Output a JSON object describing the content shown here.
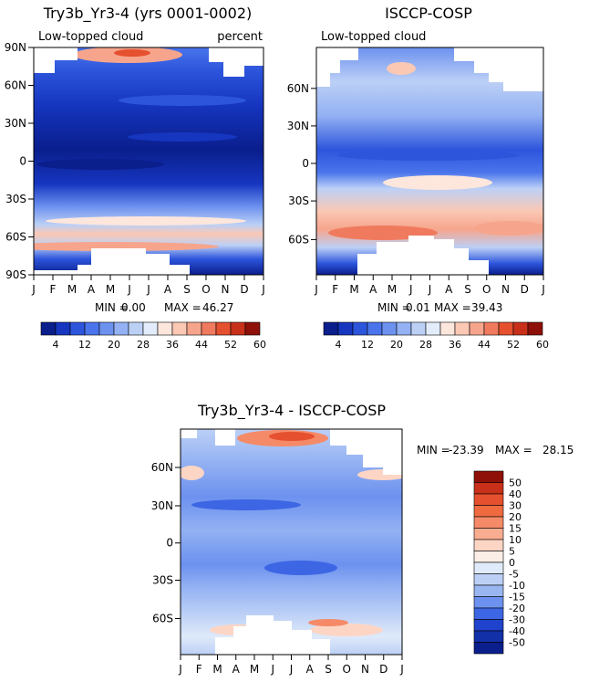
{
  "chart_data": [
    {
      "type": "heatmap",
      "title": "Try3b_Yr3-4 (yrs 0001-0002)",
      "subtitle_left": "Low-topped cloud",
      "subtitle_right": "percent",
      "stats": {
        "min_label": "MIN =",
        "min": "0.00",
        "max_label": "MAX =",
        "max": "46.27"
      },
      "x_ticks": [
        "J",
        "F",
        "M",
        "A",
        "M",
        "J",
        "J",
        "A",
        "S",
        "O",
        "N",
        "D",
        "J"
      ],
      "y_ticks": [
        "90N",
        "60N",
        "30N",
        "0",
        "30S",
        "60S",
        "90S"
      ],
      "colorbar_labels": [
        "4",
        "12",
        "20",
        "28",
        "36",
        "44",
        "52",
        "60"
      ]
    },
    {
      "type": "heatmap",
      "title": "ISCCP-COSP",
      "subtitle_left": "Low-topped cloud",
      "stats": {
        "min_label": "MIN =",
        "min": "0.01",
        "max_label": "MAX =",
        "max": "39.43"
      },
      "x_ticks": [
        "J",
        "F",
        "M",
        "A",
        "M",
        "J",
        "J",
        "A",
        "S",
        "O",
        "N",
        "D",
        "J"
      ],
      "y_ticks": [
        "60N",
        "30N",
        "0",
        "30S",
        "60S"
      ],
      "colorbar_labels": [
        "4",
        "12",
        "20",
        "28",
        "36",
        "44",
        "52",
        "60"
      ]
    },
    {
      "type": "heatmap",
      "title": "Try3b_Yr3-4 - ISCCP-COSP",
      "stats": {
        "min_label": "MIN =",
        "min": "-23.39",
        "max_label": "MAX =",
        "max": "28.15"
      },
      "x_ticks": [
        "J",
        "F",
        "M",
        "A",
        "M",
        "J",
        "J",
        "A",
        "S",
        "O",
        "N",
        "D",
        "J"
      ],
      "y_ticks": [
        "60N",
        "30N",
        "0",
        "30S",
        "60S"
      ],
      "colorbar_labels": [
        "50",
        "40",
        "30",
        "20",
        "15",
        "10",
        "5",
        "0",
        "-5",
        "-10",
        "-15",
        "-20",
        "-30",
        "-40",
        "-50"
      ]
    }
  ],
  "colors": {
    "abs_scale": [
      "#0a1e8c",
      "#1636c0",
      "#2d55dc",
      "#4a74ec",
      "#6c91ef",
      "#93b1f3",
      "#bcd0f6",
      "#e3ecfa",
      "#fde6dc",
      "#fbc8b4",
      "#f6a58c",
      "#f07a5e",
      "#e5502f",
      "#c8301a",
      "#8e1008"
    ],
    "diff_scale": [
      "#8e1008",
      "#c8301a",
      "#e5502f",
      "#f06a40",
      "#f58a68",
      "#f9ad90",
      "#fdd5c4",
      "#fbeee6",
      "#dfeafa",
      "#bcd0f6",
      "#9ab6f1",
      "#6c91ef",
      "#3d66e4",
      "#1f43cc",
      "#1230a8",
      "#0a1e8c"
    ]
  }
}
